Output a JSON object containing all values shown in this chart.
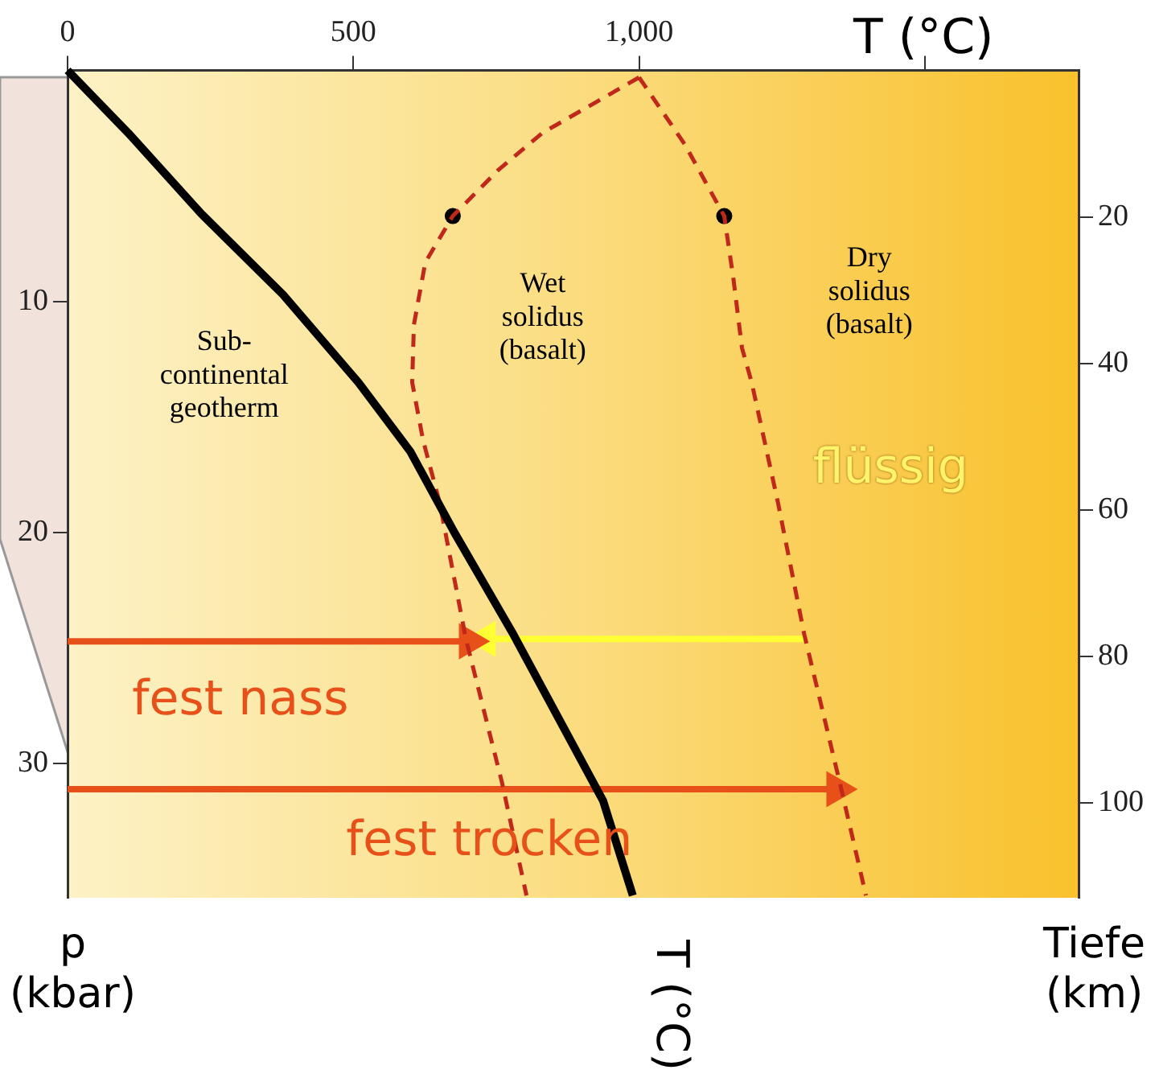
{
  "chart_data": {
    "type": "line",
    "xlabel": "T (°C)",
    "ylabel": "p\n(kbar)",
    "y2label": "Tiefe\n(km)",
    "xlim": [
      0,
      1769
    ],
    "xticks": [
      0,
      500,
      {
        "value": 1000,
        "label": "1,000"
      },
      {
        "value": 1500,
        "label": null
      }
    ],
    "ylim": [
      35.8,
      0
    ],
    "yticks": [
      10,
      20,
      30
    ],
    "y2lim": [
      113,
      0
    ],
    "y2ticks": [
      20,
      40,
      60,
      80,
      100
    ],
    "grid": false,
    "legend": false,
    "series": [
      {
        "color": "#000000",
        "line_style": "solid",
        "marker": "none",
        "x": [
          0,
          106,
          234,
          377,
          509,
          600,
          677,
          780,
          937,
          989
        ],
        "values": [
          0,
          2.7,
          6.2,
          9.7,
          13.5,
          16.5,
          20,
          24.4,
          31.6,
          35.7
        ]
      },
      {
        "color": "#c0281c",
        "line_style": "dashed",
        "marker": "none",
        "x": [
          1000,
          831,
          754,
          674,
          626,
          606,
          603,
          622,
          651,
          697,
          760,
          803
        ],
        "values": [
          0.3,
          2.7,
          4.3,
          6.3,
          8.3,
          11,
          13.5,
          16,
          18.7,
          24.6,
          30.8,
          35.7
        ]
      },
      {
        "color": "#c0281c",
        "line_style": "dashed",
        "marker": "none",
        "x": [
          1000,
          1080,
          1149,
          1165,
          1180,
          1197,
          1243,
          1289,
          1351,
          1397
        ],
        "values": [
          0.3,
          3.2,
          6.3,
          9,
          12,
          13.5,
          18.7,
          24.4,
          30.8,
          35.7
        ]
      },
      {
        "type": "scatter",
        "color": "#000000",
        "marker": "circle",
        "x": [
          674,
          1149
        ],
        "values": [
          6.3,
          6.3
        ]
      },
      {
        "color": "#e8501a",
        "line_style": "solid",
        "marker": "triangle",
        "x": [
          0,
          703
        ],
        "values": [
          24.7,
          24.7
        ]
      },
      {
        "color": "#e8501a",
        "line_style": "solid",
        "marker": "triangle",
        "x": [
          0,
          1346
        ],
        "values": [
          31.1,
          31.1
        ]
      },
      {
        "color": "#ffff33",
        "line_style": "solid",
        "marker": "triangle",
        "x": [
          1289,
          731
        ],
        "values": [
          24.6,
          24.6
        ]
      }
    ],
    "annotations": [
      "Sub-\ncontinental\ngeotherm",
      "Wet\nsolidus\n(basalt)",
      "Dry\nsolidus\n(basalt)",
      "flüssig",
      "fest nass",
      "fest trocken",
      "T (°C)"
    ]
  }
}
